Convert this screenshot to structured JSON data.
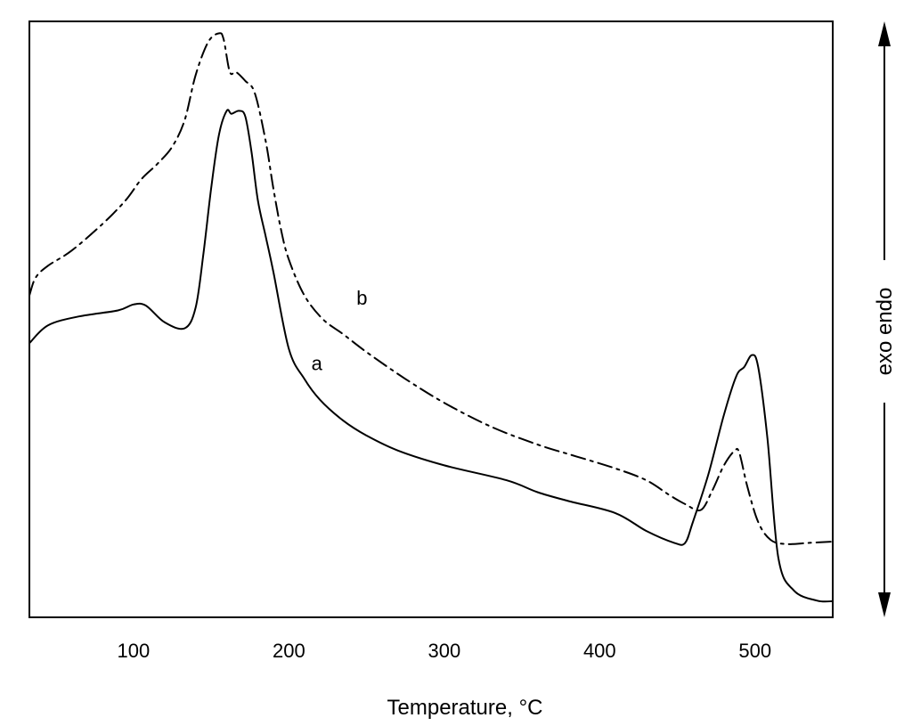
{
  "chart_data": {
    "type": "line",
    "title": "",
    "xlabel": "Temperature, °C",
    "ylabel_right": "exo endo",
    "xlim": [
      33,
      550
    ],
    "ylim": [
      0,
      100
    ],
    "x_ticks": [
      100,
      200,
      300,
      400,
      500
    ],
    "x_tick_labels": [
      "100",
      "200",
      "300",
      "400",
      "500"
    ],
    "grid": false,
    "legend": "none",
    "series": [
      {
        "name": "a",
        "style": "solid",
        "x": [
          33,
          45,
          65,
          90,
          100,
          108,
          120,
          133,
          140,
          145,
          150,
          155,
          160,
          163,
          168,
          172,
          176,
          180,
          185,
          190,
          200,
          210,
          220,
          235,
          250,
          270,
          300,
          340,
          360,
          380,
          410,
          430,
          448,
          455,
          460,
          470,
          480,
          488,
          493,
          498,
          502,
          508,
          515,
          525,
          540,
          550
        ],
        "y": [
          46,
          49,
          50.5,
          51.5,
          52.5,
          52.3,
          49.5,
          48.5,
          52,
          61,
          72,
          81,
          85,
          84.5,
          85,
          84,
          78,
          70,
          64,
          58,
          45,
          40,
          36.5,
          33,
          30.5,
          28,
          25.5,
          23,
          21,
          19.5,
          17.5,
          14.5,
          12.5,
          12.5,
          16,
          24,
          34,
          40.5,
          42,
          44,
          42,
          30,
          10,
          4.5,
          2.8,
          2.7
        ]
      },
      {
        "name": "b",
        "style": "dash-dot",
        "x": [
          33,
          37,
          45,
          60,
          80,
          95,
          105,
          115,
          125,
          133,
          140,
          148,
          155,
          158,
          162,
          166,
          172,
          178,
          185,
          190,
          195,
          200,
          210,
          222,
          235,
          250,
          275,
          300,
          330,
          360,
          385,
          410,
          430,
          445,
          455,
          465,
          472,
          480,
          487,
          490,
          495,
          502,
          510,
          520,
          535,
          550
        ],
        "y": [
          54,
          57,
          59,
          61.5,
          66,
          70,
          73.5,
          76,
          79,
          83.5,
          91,
          96.5,
          98,
          97,
          91.5,
          91.5,
          90,
          88,
          80,
          72,
          65,
          60,
          54,
          50,
          47.5,
          44.5,
          40,
          36,
          32,
          29,
          27,
          25,
          23,
          20.5,
          19,
          18,
          21,
          25.5,
          28,
          27.5,
          22,
          16,
          13,
          12.3,
          12.5,
          12.7
        ]
      }
    ],
    "annotations": [
      {
        "text": "a",
        "x": 218,
        "y": 41.5
      },
      {
        "text": "b",
        "x": 247,
        "y": 52.5
      }
    ]
  }
}
